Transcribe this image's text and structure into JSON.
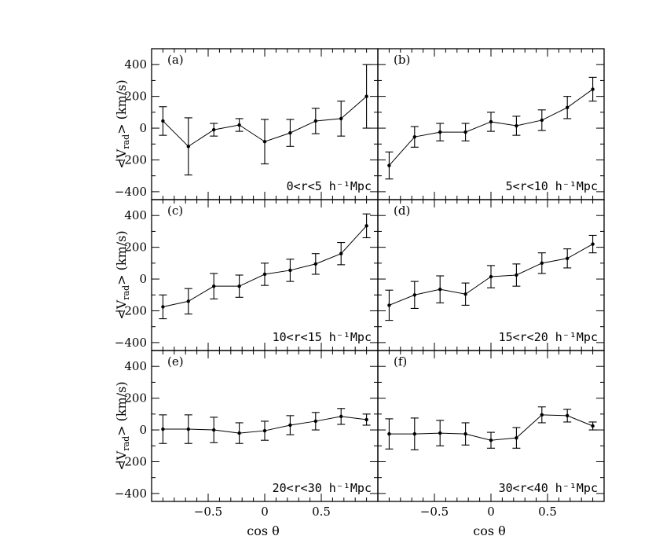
{
  "chart_data": {
    "type": "line",
    "layout": "3x2 panel grid",
    "xlabel": "cos θ",
    "ylabel": "<V_rad> (km/s)",
    "ylabel_main": "<V",
    "ylabel_sub": "rad",
    "ylabel_rest": "> (km/s)",
    "xlim": [
      -1,
      1
    ],
    "ylim": [
      -450,
      500
    ],
    "x_ticks": [
      -0.5,
      0,
      0.5
    ],
    "x_tick_labels": [
      "−0.5",
      "0",
      "0.5"
    ],
    "y_ticks": [
      -400,
      -200,
      0,
      200,
      400
    ],
    "y_tick_labels": [
      "−400",
      "−200",
      "0",
      "200",
      "400"
    ],
    "x": [
      -0.9,
      -0.675,
      -0.45,
      -0.225,
      0.0,
      0.225,
      0.45,
      0.675,
      0.9
    ],
    "panels": [
      {
        "label": "(a)",
        "range_label": "0<r<5 h⁻¹Mpc",
        "values": [
          45,
          -115,
          -10,
          20,
          -85,
          -30,
          45,
          60,
          200
        ],
        "errors": [
          90,
          180,
          40,
          40,
          140,
          85,
          80,
          110,
          200
        ]
      },
      {
        "label": "(b)",
        "range_label": "5<r<10 h⁻¹Mpc",
        "values": [
          -235,
          -55,
          -25,
          -25,
          40,
          15,
          50,
          130,
          245
        ],
        "errors": [
          85,
          65,
          55,
          55,
          60,
          60,
          65,
          70,
          75
        ]
      },
      {
        "label": "(c)",
        "range_label": "10<r<15 h⁻¹Mpc",
        "values": [
          -175,
          -140,
          -45,
          -45,
          30,
          55,
          95,
          160,
          335
        ],
        "errors": [
          75,
          80,
          80,
          70,
          70,
          70,
          65,
          70,
          75
        ]
      },
      {
        "label": "(d)",
        "range_label": "15<r<20 h⁻¹Mpc",
        "values": [
          -165,
          -100,
          -65,
          -95,
          15,
          25,
          100,
          130,
          220
        ],
        "errors": [
          95,
          85,
          85,
          70,
          70,
          70,
          65,
          60,
          55
        ]
      },
      {
        "label": "(e)",
        "range_label": "20<r<30 h⁻¹Mpc",
        "values": [
          5,
          5,
          0,
          -20,
          -5,
          30,
          55,
          85,
          65
        ],
        "errors": [
          90,
          90,
          80,
          65,
          60,
          60,
          55,
          50,
          35
        ]
      },
      {
        "label": "(f)",
        "range_label": "30<r<40 h⁻¹Mpc",
        "values": [
          -25,
          -25,
          -20,
          -25,
          -65,
          -50,
          95,
          90,
          25
        ],
        "errors": [
          95,
          100,
          80,
          70,
          50,
          65,
          50,
          40,
          25
        ]
      }
    ]
  }
}
